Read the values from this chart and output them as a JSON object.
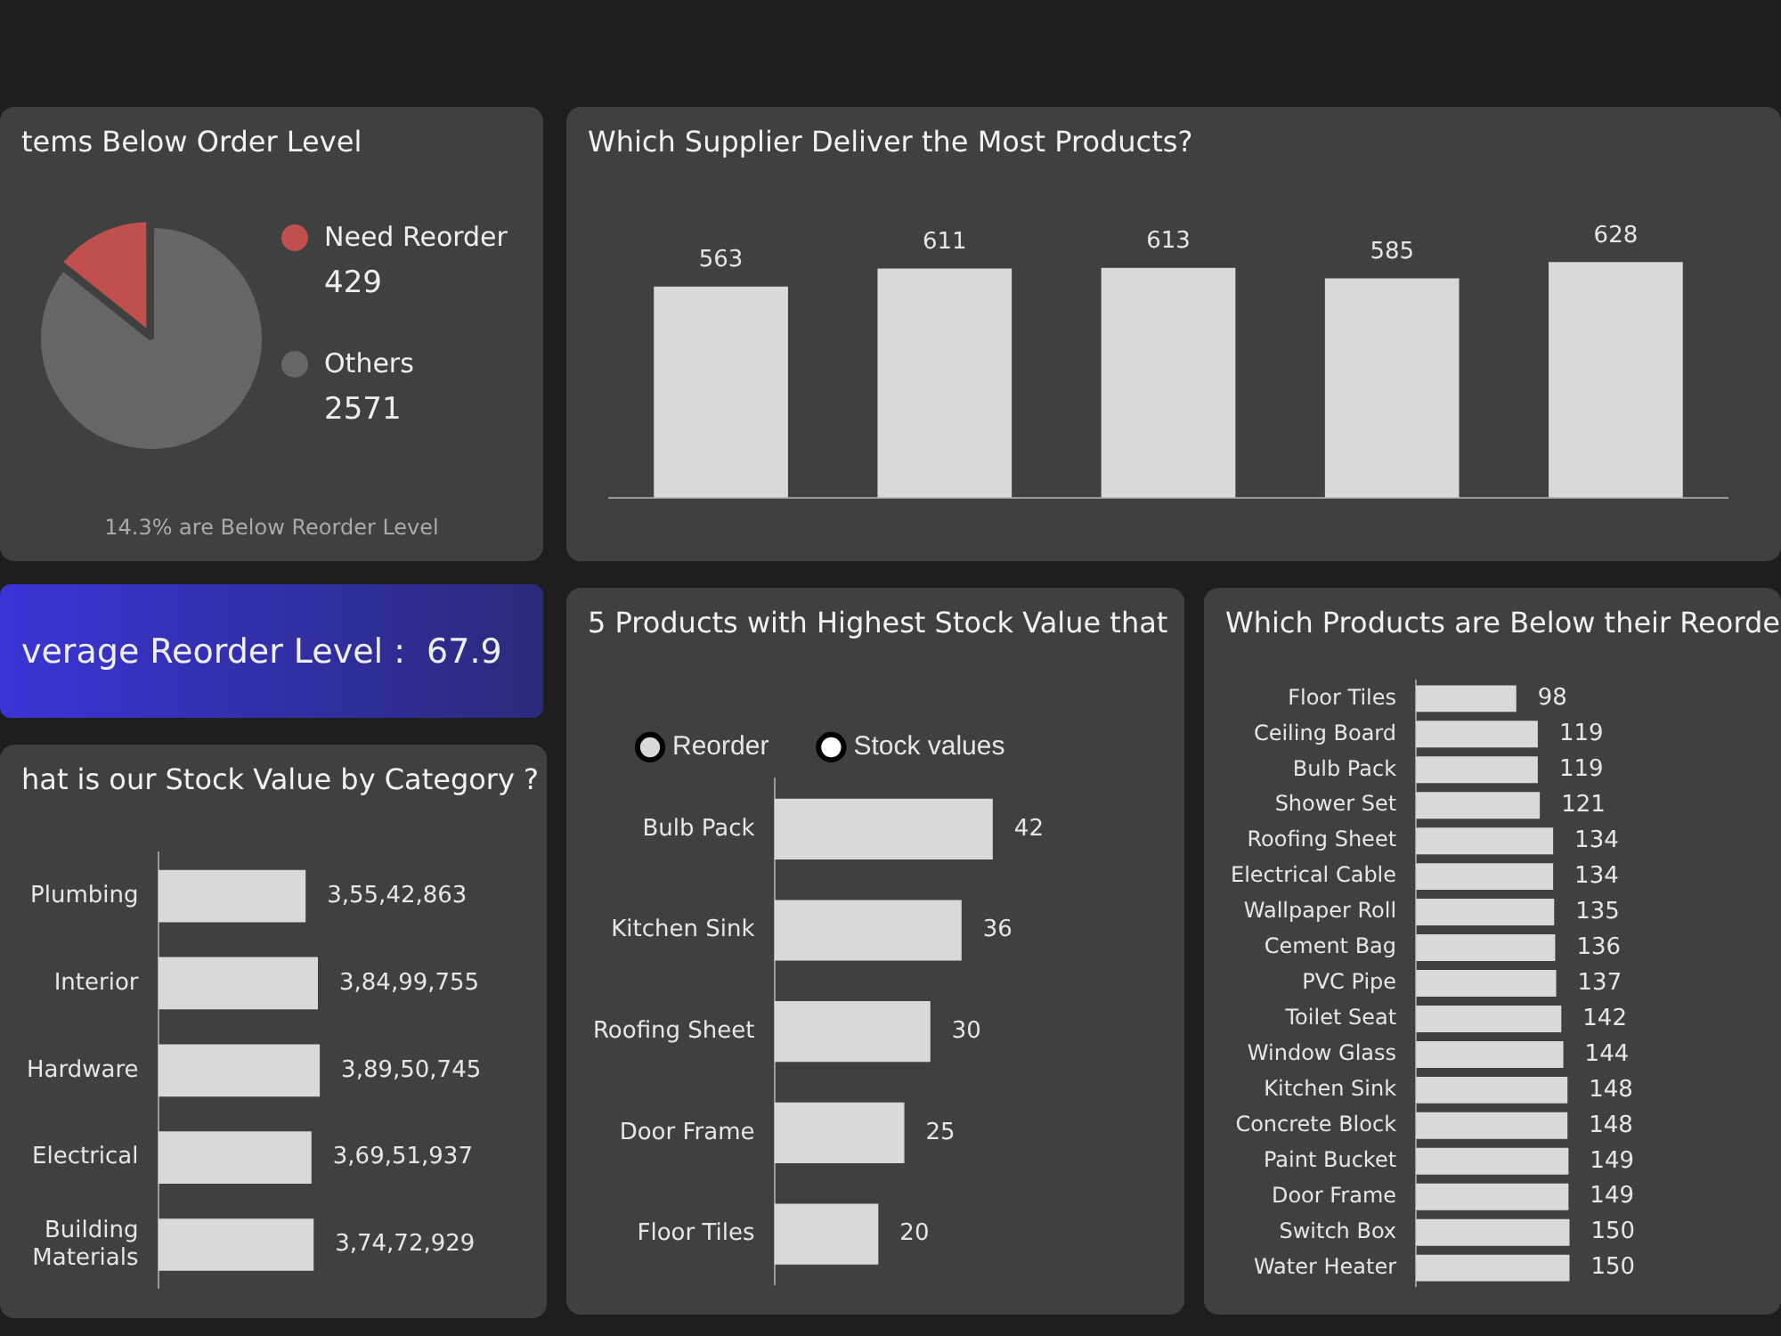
{
  "chart_data": [
    {
      "type": "pie",
      "title": "tems Below Order Level",
      "categories": [
        "Need Reorder",
        "Others"
      ],
      "values": [
        429,
        2571
      ],
      "colors": [
        "#c0504d",
        "#666666"
      ],
      "legend": "right",
      "data_labels": true,
      "annotations": [
        "14.3% are Below Reorder Level"
      ]
    },
    {
      "type": "bar",
      "title": "Which Supplier Deliver the Most Products?",
      "categories": [
        null,
        null,
        null,
        null,
        null
      ],
      "values": [
        563,
        611,
        613,
        585,
        628
      ],
      "color": "#d9d9d9",
      "data_labels": true
    },
    {
      "type": "other",
      "title": "verage Reorder Level :",
      "annotations": [
        "67.9"
      ]
    },
    {
      "type": "bar",
      "orientation": "horizontal",
      "title": "hat is our Stock Value by Category ?",
      "categories": [
        "Plumbing",
        "Interior",
        "Hardware",
        "Electrical",
        "Building Materials"
      ],
      "values": [
        35542863,
        38499755,
        38950745,
        36951937,
        37472929
      ],
      "value_labels": [
        "3,55,42,863",
        "3,84,99,755",
        "3,89,50,745",
        "3,69,51,937",
        "3,74,72,929"
      ],
      "color": "#d9d9d9"
    },
    {
      "type": "bar",
      "orientation": "horizontal",
      "title": "5 Products with Highest Stock Value that",
      "categories": [
        "Bulb Pack",
        "Kitchen Sink",
        "Roofing Sheet",
        "Door Frame",
        "Floor Tiles"
      ],
      "legend": "top",
      "data_labels": true,
      "series": [
        {
          "name": "Reorder",
          "color": "#d9d9d9",
          "values": [
            42,
            36,
            30,
            25,
            20
          ]
        },
        {
          "name": "Stock values",
          "color": "#ffffff",
          "values": [
            null,
            null,
            null,
            null,
            null
          ]
        }
      ]
    },
    {
      "type": "bar",
      "orientation": "horizontal",
      "title": "Which Products are Below their Reorde",
      "categories": [
        "Floor Tiles",
        "Ceiling Board",
        "Bulb Pack",
        "Shower Set",
        "Roofing Sheet",
        "Electrical Cable",
        "Wallpaper Roll",
        "Cement Bag",
        "PVC Pipe",
        "Toilet Seat",
        "Window Glass",
        "Kitchen Sink",
        "Concrete Block",
        "Paint Bucket",
        "Door Frame",
        "Switch Box",
        "Water Heater"
      ],
      "values": [
        98,
        119,
        119,
        121,
        134,
        134,
        135,
        136,
        137,
        142,
        144,
        148,
        148,
        149,
        149,
        150,
        150
      ],
      "color": "#d9d9d9",
      "data_labels": true
    }
  ]
}
